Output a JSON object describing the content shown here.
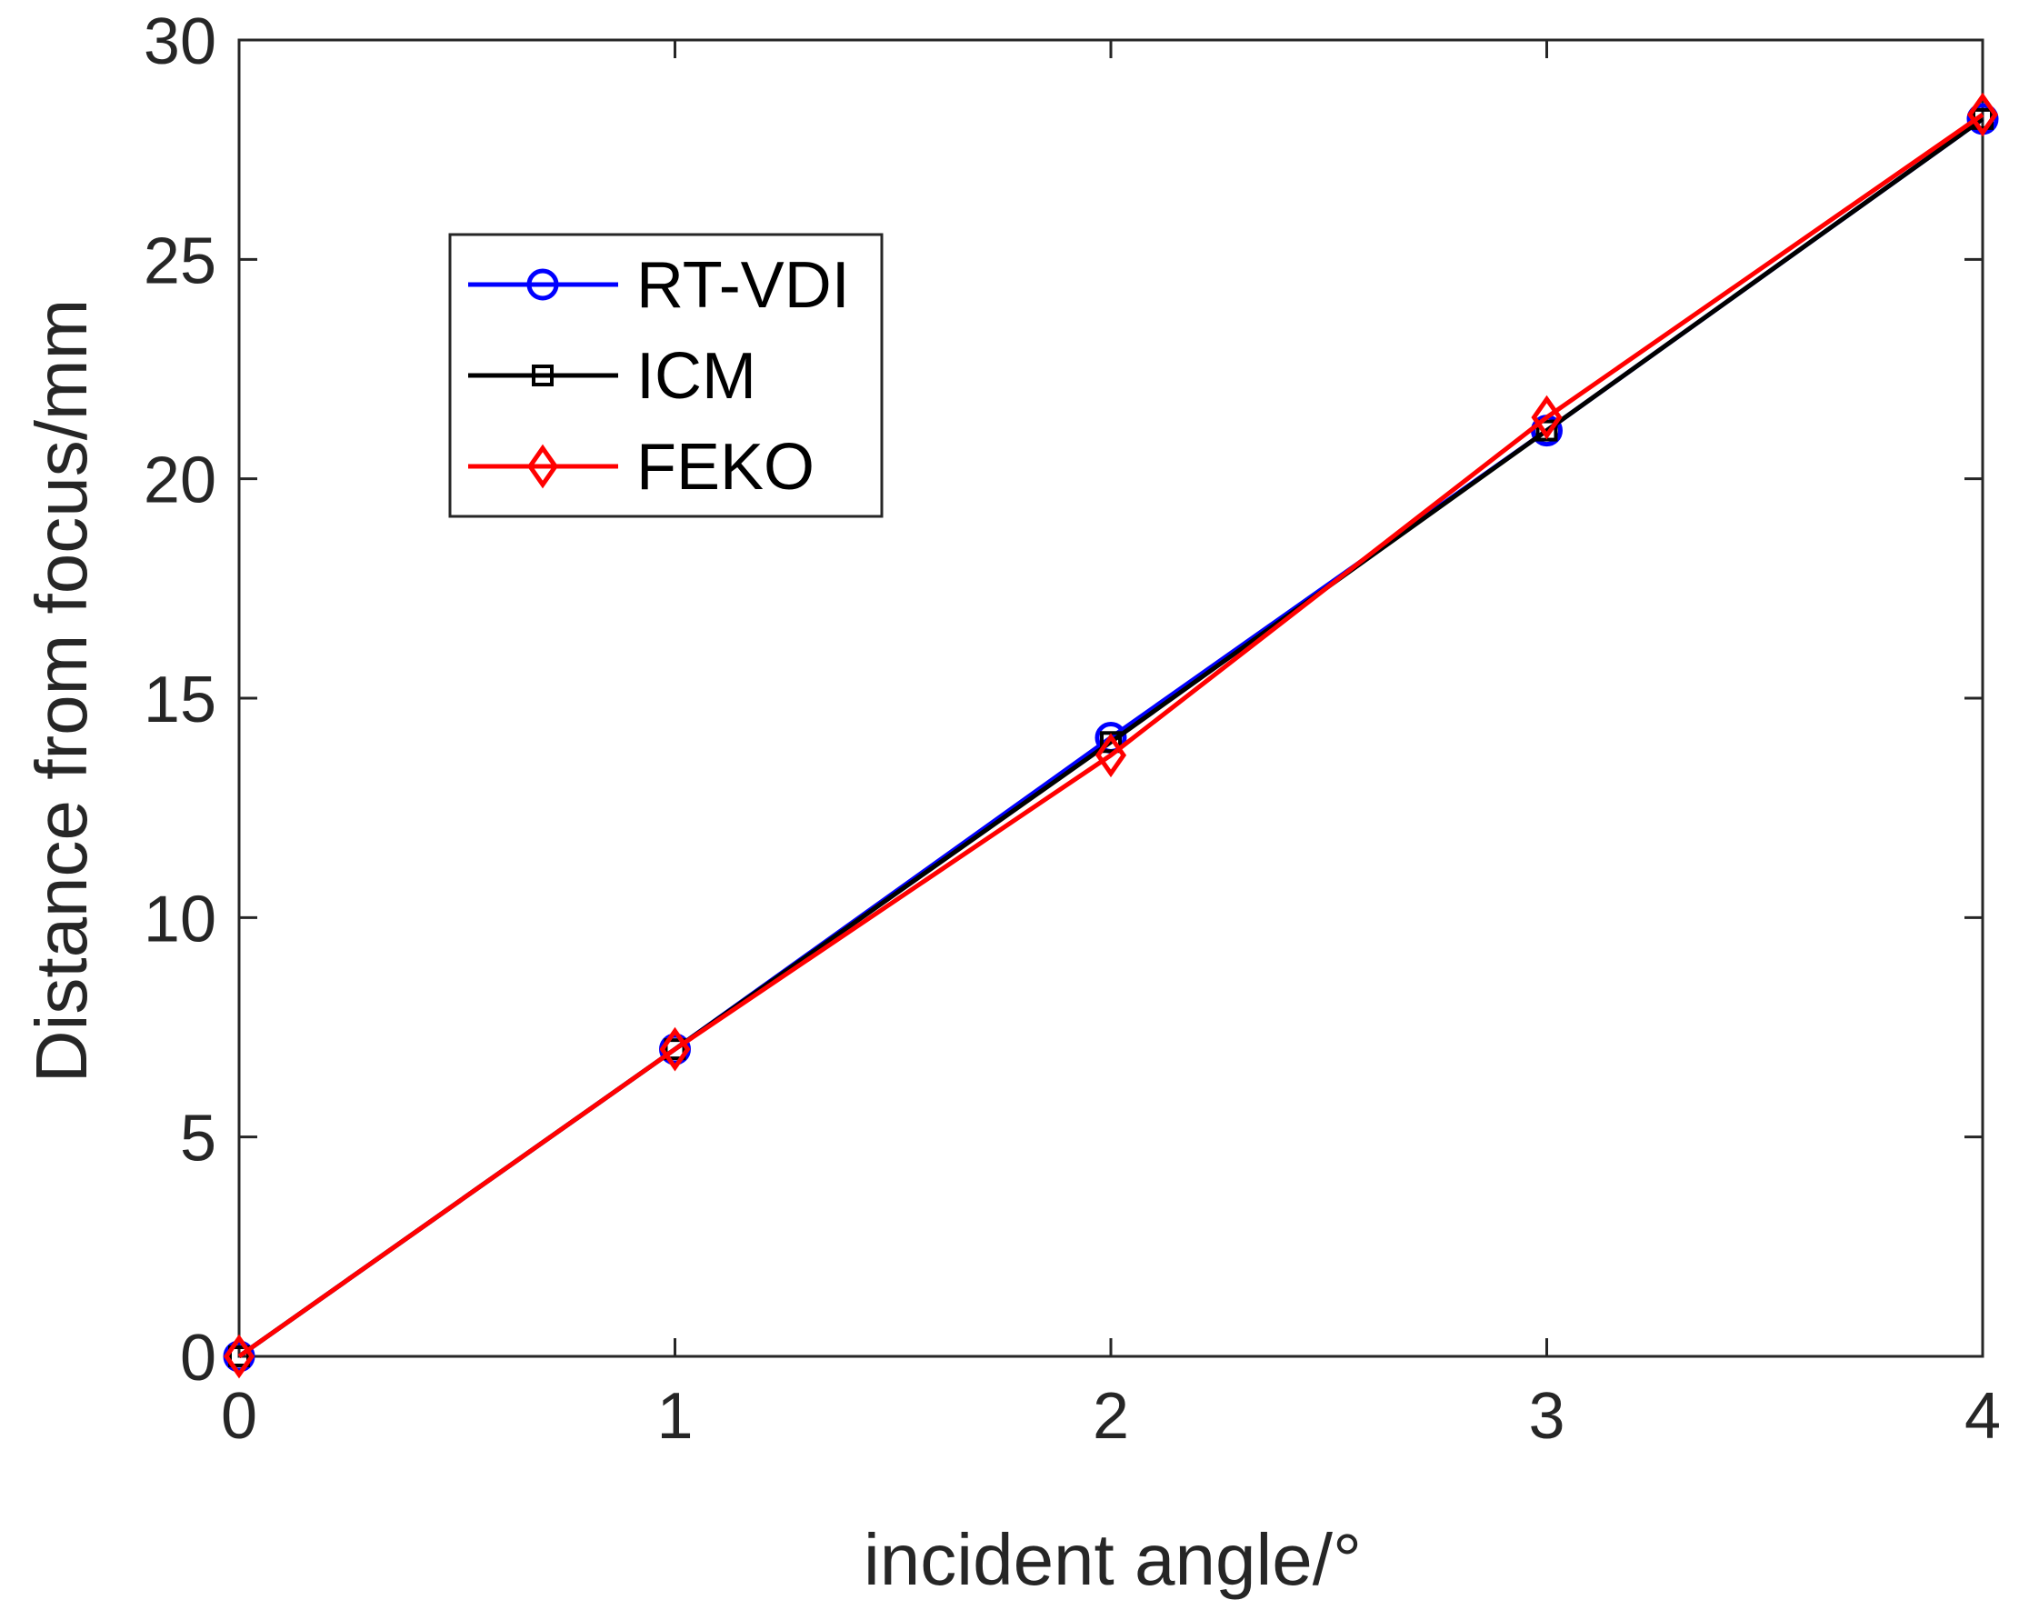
{
  "chart_data": {
    "type": "line",
    "title": "",
    "xlabel": "incident angle/°",
    "ylabel": "Distance from focus/mm",
    "xlim": [
      0,
      4
    ],
    "ylim": [
      0,
      30
    ],
    "xticks": [
      0,
      1,
      2,
      3,
      4
    ],
    "yticks": [
      0,
      5,
      10,
      15,
      20,
      25,
      30
    ],
    "grid": false,
    "legend_position": "upper-left",
    "x": [
      0,
      1,
      2,
      3,
      4
    ],
    "series": [
      {
        "name": "RT-VDI",
        "color": "#0000ff",
        "marker": "circle",
        "values": [
          0,
          7.0,
          14.1,
          21.1,
          28.2
        ]
      },
      {
        "name": "ICM",
        "color": "#000000",
        "marker": "square",
        "values": [
          0,
          7.0,
          14.0,
          21.1,
          28.2
        ]
      },
      {
        "name": "FEKO",
        "color": "#ff0000",
        "marker": "diamond",
        "values": [
          0,
          7.0,
          13.7,
          21.4,
          28.3
        ]
      }
    ]
  }
}
